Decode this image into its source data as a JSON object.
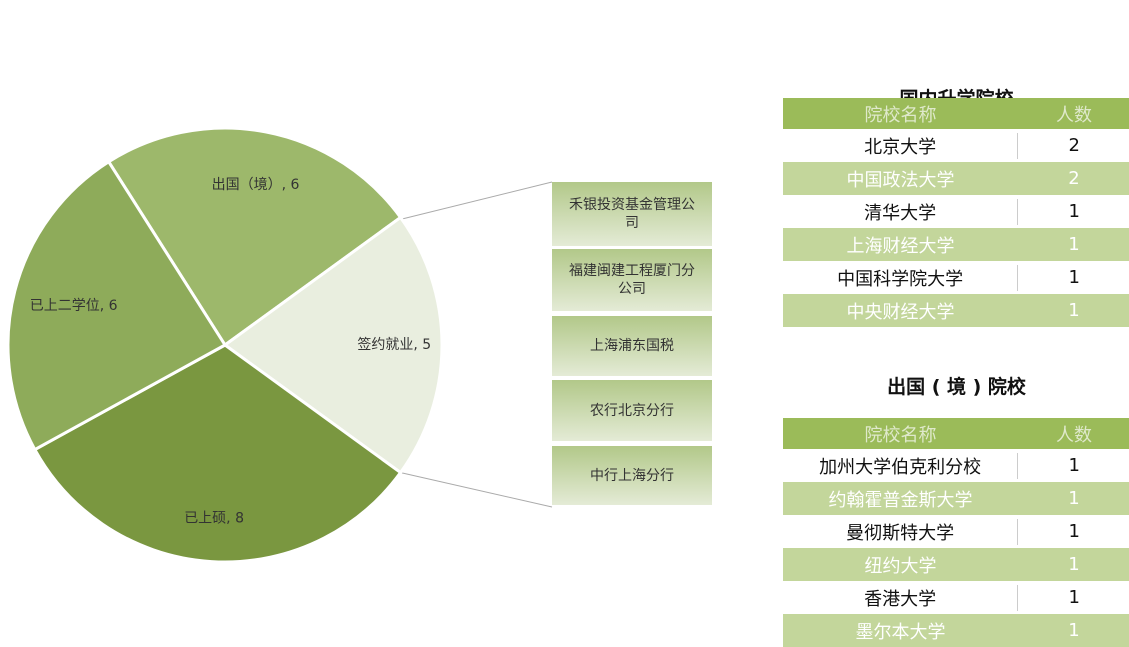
{
  "chart_data": {
    "type": "pie",
    "value_labels": [
      "出国（境）, 6",
      "签约就业, 5",
      "已上硕, 8",
      "已上二学位, 6"
    ],
    "values": [
      6,
      5,
      8,
      6
    ],
    "colors": [
      "#9db86b",
      "#e9eedf",
      "#7a9740",
      "#8eab5a"
    ],
    "breakdown": [
      "禾银投资基金管理公司",
      "福建闽建工程厦门分公司",
      "上海浦东国税",
      "农行北京分行",
      "中行上海分行"
    ]
  },
  "domestic": {
    "title": "国内升学院校",
    "header": [
      "院校名称",
      "人数"
    ],
    "rows": [
      [
        "北京大学",
        2
      ],
      [
        "中国政法大学",
        2
      ],
      [
        "清华大学",
        1
      ],
      [
        "上海财经大学",
        1
      ],
      [
        "中国科学院大学",
        1
      ],
      [
        "中央财经大学",
        1
      ]
    ]
  },
  "abroad": {
    "title": "出国 ( 境 ) 院校",
    "header": [
      "院校名称",
      "人数"
    ],
    "rows": [
      [
        "加州大学伯克利分校",
        1
      ],
      [
        "约翰霍普金斯大学",
        1
      ],
      [
        "曼彻斯特大学",
        1
      ],
      [
        "纽约大学",
        1
      ],
      [
        "香港大学",
        1
      ],
      [
        "墨尔本大学",
        1
      ]
    ]
  }
}
